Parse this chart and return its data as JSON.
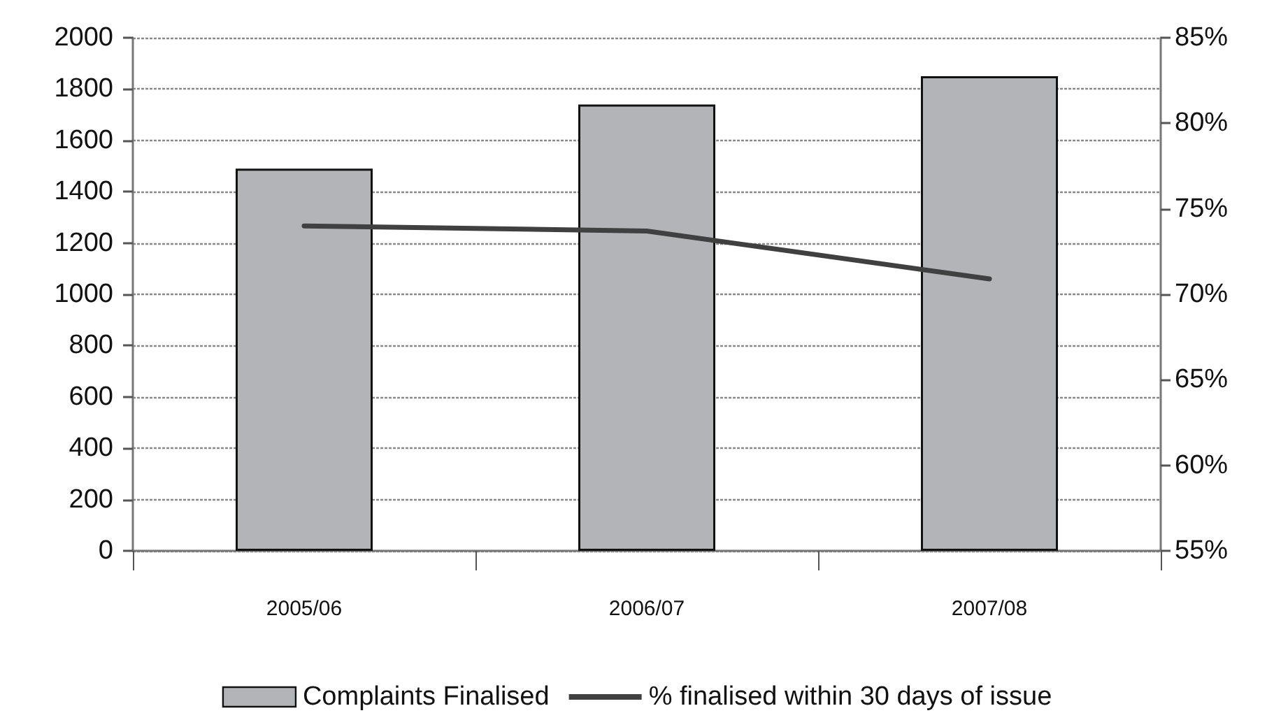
{
  "chart_data": {
    "type": "bar",
    "categories": [
      "2005/06",
      "2006/07",
      "2007/08"
    ],
    "series": [
      {
        "name": "Complaints Finalised",
        "color": "#b3b4b8",
        "values": [
          1490,
          1740,
          1850
        ]
      },
      {
        "name": "% finalised within 30 days of issue",
        "type": "line",
        "axis": "y2",
        "color": "#404040",
        "values": [
          74.0,
          73.7,
          70.9
        ]
      }
    ],
    "ylim": [
      0,
      2000
    ],
    "yticks": [
      0,
      200,
      400,
      600,
      800,
      1000,
      1200,
      1400,
      1600,
      1800,
      2000
    ],
    "y2lim": [
      55,
      85
    ],
    "y2ticks": [
      {
        "value": 55,
        "label": "55%"
      },
      {
        "value": 60,
        "label": "60%"
      },
      {
        "value": 65,
        "label": "65%"
      },
      {
        "value": 70,
        "label": "70%"
      },
      {
        "value": 75,
        "label": "75%"
      },
      {
        "value": 80,
        "label": "80%"
      },
      {
        "value": 85,
        "label": "85%"
      }
    ],
    "grid": "y",
    "legend": "bottom"
  }
}
